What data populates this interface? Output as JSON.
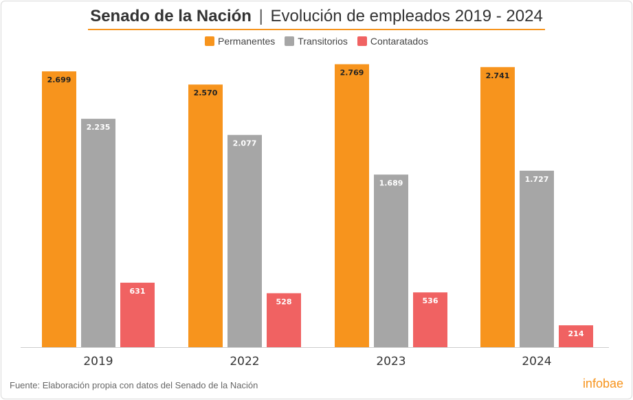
{
  "header": {
    "title_bold": "Senado de la Nación",
    "title_separator": "|",
    "title_rest": "Evolución de empleados 2019 - 2024"
  },
  "footer": {
    "source": "Fuente: Elaboración propia con datos del Senado de la Nación",
    "brand": "infobae"
  },
  "colors": {
    "permanentes": "#f7941d",
    "transitorios": "#a6a6a6",
    "contratados": "#f06262",
    "accent": "#f7941d"
  },
  "chart_data": {
    "type": "bar",
    "title": "Senado de la Nación | Evolución de empleados 2019 - 2024",
    "categories": [
      "2019",
      "2022",
      "2023",
      "2024"
    ],
    "series": [
      {
        "name": "Permanentes",
        "values": [
          2699,
          2570,
          2769,
          2741
        ],
        "labels": [
          "2.699",
          "2.570",
          "2.769",
          "2.741"
        ]
      },
      {
        "name": "Transitorios",
        "values": [
          2235,
          2077,
          1689,
          1727
        ],
        "labels": [
          "2.235",
          "2.077",
          "1.689",
          "1.727"
        ]
      },
      {
        "name": "Contaratados",
        "values": [
          631,
          528,
          536,
          214
        ],
        "labels": [
          "631",
          "528",
          "536",
          "214"
        ]
      }
    ],
    "ylim": [
      0,
      2820
    ],
    "grid": false,
    "legend": "top-center",
    "xlabel": "",
    "ylabel": ""
  }
}
